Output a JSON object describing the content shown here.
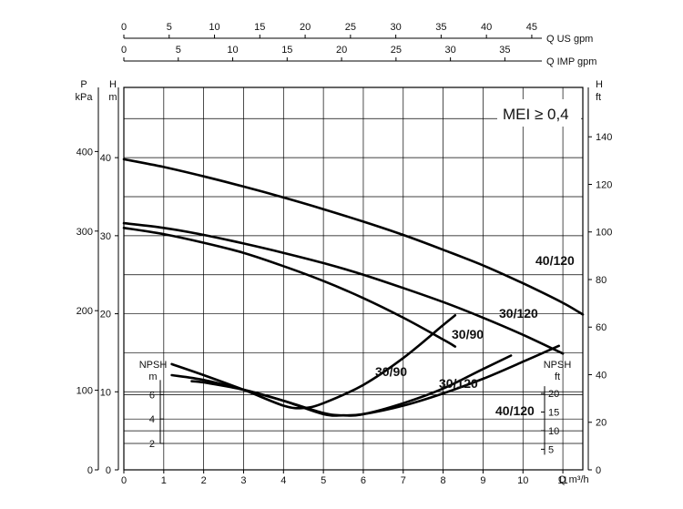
{
  "chart_data": {
    "type": "line",
    "mei_label": "MEI ≥ 0,4",
    "x_axis": {
      "label": "Q m³/h",
      "range": [
        0,
        11.5
      ],
      "ticks": [
        0,
        1,
        2,
        3,
        4,
        5,
        6,
        7,
        8,
        9,
        10,
        11
      ]
    },
    "top_axes": [
      {
        "label": "Q US gpm",
        "ticks": [
          0,
          5,
          10,
          15,
          20,
          25,
          30,
          35,
          40,
          45
        ]
      },
      {
        "label": "Q IMP gpm",
        "ticks": [
          0,
          5,
          10,
          15,
          20,
          25,
          30,
          35
        ]
      }
    ],
    "y_axes": {
      "head_m": {
        "label": "H\nm",
        "range": [
          0,
          49
        ],
        "ticks": [
          0,
          10,
          20,
          30,
          40
        ]
      },
      "pressure_kpa": {
        "label": "P\nkPa",
        "ticks": [
          0,
          100,
          200,
          300,
          400
        ]
      },
      "head_ft": {
        "label": "H\nft",
        "ticks": [
          0,
          20,
          40,
          60,
          80,
          100,
          120,
          140
        ]
      },
      "npsh_m": {
        "label": "NPSH\nm",
        "ticks": [
          2,
          4,
          6
        ]
      },
      "npsh_ft": {
        "label": "NPSH\nft",
        "ticks": [
          5,
          10,
          15,
          20
        ]
      }
    },
    "grid": true,
    "series": [
      {
        "name": "40/120",
        "x": [
          0,
          1,
          2,
          3,
          4,
          5,
          6,
          7,
          8,
          9,
          10,
          11,
          11.5
        ],
        "y": [
          39.8,
          38.8,
          37.6,
          36.3,
          34.9,
          33.4,
          31.8,
          30.1,
          28.2,
          26.2,
          23.9,
          21.4,
          19.9
        ]
      },
      {
        "name": "30/120",
        "x": [
          0,
          1,
          2,
          3,
          4,
          5,
          6,
          7,
          8,
          9,
          10,
          11
        ],
        "y": [
          31.6,
          31.0,
          30.1,
          29.0,
          27.8,
          26.5,
          25.0,
          23.3,
          21.5,
          19.5,
          17.3,
          14.9
        ]
      },
      {
        "name": "30/90",
        "x": [
          0,
          1,
          2,
          3,
          4,
          5,
          6,
          7,
          8,
          8.3
        ],
        "y": [
          31.0,
          30.2,
          29.1,
          27.8,
          26.1,
          24.2,
          22.0,
          19.5,
          16.7,
          15.8
        ]
      }
    ],
    "npsh_series": [
      {
        "name": "30/90",
        "x": [
          1.2,
          2.0,
          3.0,
          4.0,
          4.5,
          5.0,
          6.0,
          7.0,
          8.0,
          8.3
        ],
        "y": [
          8.5,
          7.6,
          6.4,
          5.1,
          4.9,
          5.3,
          6.8,
          9.0,
          11.7,
          12.5
        ]
      },
      {
        "name": "30/120",
        "x": [
          1.2,
          2.0,
          3.0,
          4.0,
          5.0,
          5.5,
          6.0,
          7.0,
          8.0,
          9.0,
          9.7
        ],
        "y": [
          7.6,
          7.2,
          6.4,
          5.5,
          4.5,
          4.3,
          4.4,
          5.3,
          6.5,
          8.1,
          9.2
        ]
      },
      {
        "name": "40/120",
        "x": [
          1.7,
          2.0,
          3.0,
          4.0,
          5.0,
          5.5,
          6.0,
          7.0,
          8.0,
          9.0,
          10.0,
          10.9
        ],
        "y": [
          7.1,
          7.0,
          6.4,
          5.5,
          4.4,
          4.3,
          4.4,
          5.1,
          6.1,
          7.3,
          8.7,
          10.0
        ]
      }
    ]
  }
}
